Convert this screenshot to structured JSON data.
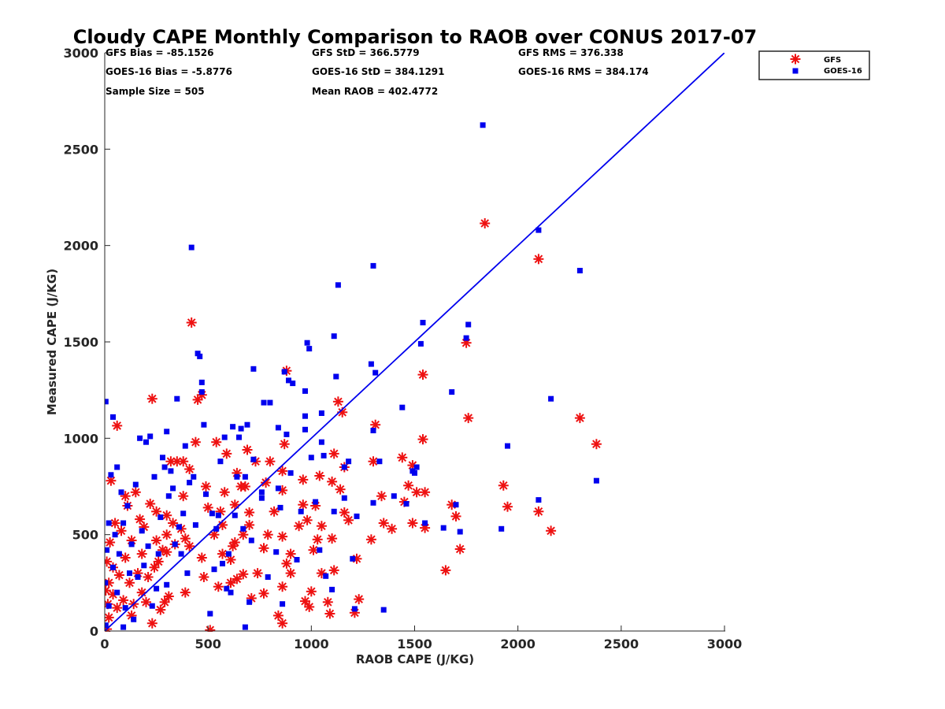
{
  "chart_data": {
    "type": "scatter",
    "title": "Cloudy CAPE Monthly Comparison to RAOB over CONUS 2017-07",
    "xlabel": "RAOB CAPE (J/KG)",
    "ylabel": "Measured CAPE (J/KG)",
    "xlim": [
      0,
      3000
    ],
    "ylim": [
      0,
      3000
    ],
    "xticks": [
      "0",
      "500",
      "1000",
      "1500",
      "2000",
      "2500",
      "3000"
    ],
    "yticks": [
      "0",
      "500",
      "1000",
      "1500",
      "2000",
      "2500",
      "3000"
    ],
    "grid": false,
    "legend_position": "top-right, outside plot",
    "stats": [
      "GFS Bias = -85.1526",
      "GFS StD = 366.5779",
      "GFS RMS = 376.338",
      "GOES-16 Bias = -5.8776",
      "GOES-16 StD = 384.1291",
      "GOES-16 RMS = 384.174",
      "Sample Size = 505",
      "Mean RAOB = 402.4772"
    ],
    "reference_line": {
      "color": "#0000ee",
      "points": [
        [
          0,
          0
        ],
        [
          3000,
          3000
        ]
      ]
    },
    "series": [
      {
        "name": "GFS",
        "marker": "asterisk",
        "color": "#ee1111",
        "points": [
          [
            1840,
            2115
          ],
          [
            2100,
            1930
          ],
          [
            2380,
            970
          ],
          [
            2300,
            1105
          ],
          [
            2160,
            520
          ],
          [
            2100,
            620
          ],
          [
            1950,
            645
          ],
          [
            1930,
            755
          ],
          [
            1760,
            1105
          ],
          [
            1750,
            1495
          ],
          [
            1720,
            425
          ],
          [
            1700,
            595
          ],
          [
            1680,
            655
          ],
          [
            1650,
            315
          ],
          [
            1550,
            535
          ],
          [
            1550,
            720
          ],
          [
            1540,
            995
          ],
          [
            1540,
            1330
          ],
          [
            1510,
            720
          ],
          [
            1490,
            860
          ],
          [
            1490,
            560
          ],
          [
            1470,
            755
          ],
          [
            1450,
            670
          ],
          [
            1440,
            900
          ],
          [
            1390,
            530
          ],
          [
            1350,
            560
          ],
          [
            1340,
            700
          ],
          [
            1310,
            1070
          ],
          [
            1300,
            880
          ],
          [
            1290,
            475
          ],
          [
            1230,
            165
          ],
          [
            1220,
            375
          ],
          [
            1210,
            95
          ],
          [
            1180,
            575
          ],
          [
            1160,
            850
          ],
          [
            1160,
            615
          ],
          [
            1150,
            1135
          ],
          [
            1140,
            735
          ],
          [
            1130,
            1190
          ],
          [
            1100,
            775
          ],
          [
            1100,
            480
          ],
          [
            1110,
            315
          ],
          [
            1110,
            920
          ],
          [
            1090,
            90
          ],
          [
            1080,
            150
          ],
          [
            1050,
            545
          ],
          [
            1050,
            300
          ],
          [
            1040,
            805
          ],
          [
            1030,
            475
          ],
          [
            1020,
            650
          ],
          [
            1010,
            420
          ],
          [
            1000,
            205
          ],
          [
            990,
            125
          ],
          [
            980,
            575
          ],
          [
            970,
            155
          ],
          [
            960,
            655
          ],
          [
            960,
            785
          ],
          [
            940,
            545
          ],
          [
            900,
            300
          ],
          [
            900,
            400
          ],
          [
            880,
            350
          ],
          [
            880,
            1350
          ],
          [
            870,
            970
          ],
          [
            860,
            490
          ],
          [
            860,
            230
          ],
          [
            860,
            730
          ],
          [
            860,
            830
          ],
          [
            860,
            40
          ],
          [
            840,
            80
          ],
          [
            820,
            620
          ],
          [
            800,
            880
          ],
          [
            790,
            500
          ],
          [
            780,
            770
          ],
          [
            770,
            430
          ],
          [
            770,
            195
          ],
          [
            740,
            300
          ],
          [
            730,
            880
          ],
          [
            710,
            170
          ],
          [
            700,
            550
          ],
          [
            700,
            615
          ],
          [
            690,
            940
          ],
          [
            680,
            750
          ],
          [
            670,
            500
          ],
          [
            670,
            295
          ],
          [
            660,
            750
          ],
          [
            640,
            820
          ],
          [
            640,
            270
          ],
          [
            630,
            655
          ],
          [
            630,
            460
          ],
          [
            620,
            440
          ],
          [
            610,
            370
          ],
          [
            610,
            250
          ],
          [
            590,
            920
          ],
          [
            580,
            720
          ],
          [
            570,
            550
          ],
          [
            570,
            400
          ],
          [
            560,
            620
          ],
          [
            550,
            230
          ],
          [
            540,
            980
          ],
          [
            530,
            500
          ],
          [
            510,
            5
          ],
          [
            500,
            640
          ],
          [
            490,
            750
          ],
          [
            480,
            280
          ],
          [
            470,
            380
          ],
          [
            470,
            1225
          ],
          [
            450,
            1200
          ],
          [
            440,
            980
          ],
          [
            420,
            1600
          ],
          [
            410,
            440
          ],
          [
            410,
            840
          ],
          [
            390,
            200
          ],
          [
            390,
            480
          ],
          [
            380,
            700
          ],
          [
            380,
            880
          ],
          [
            370,
            530
          ],
          [
            350,
            880
          ],
          [
            340,
            450
          ],
          [
            330,
            560
          ],
          [
            320,
            880
          ],
          [
            310,
            180
          ],
          [
            300,
            410
          ],
          [
            300,
            600
          ],
          [
            300,
            500
          ],
          [
            290,
            150
          ],
          [
            280,
            420
          ],
          [
            270,
            110
          ],
          [
            260,
            360
          ],
          [
            250,
            620
          ],
          [
            250,
            470
          ],
          [
            240,
            330
          ],
          [
            230,
            40
          ],
          [
            230,
            1205
          ],
          [
            220,
            660
          ],
          [
            210,
            280
          ],
          [
            200,
            150
          ],
          [
            190,
            540
          ],
          [
            180,
            400
          ],
          [
            180,
            200
          ],
          [
            170,
            580
          ],
          [
            160,
            300
          ],
          [
            150,
            720
          ],
          [
            140,
            140
          ],
          [
            130,
            470
          ],
          [
            130,
            80
          ],
          [
            120,
            250
          ],
          [
            110,
            650
          ],
          [
            100,
            700
          ],
          [
            100,
            380
          ],
          [
            90,
            160
          ],
          [
            80,
            520
          ],
          [
            70,
            290
          ],
          [
            60,
            120
          ],
          [
            60,
            1065
          ],
          [
            50,
            560
          ],
          [
            40,
            330
          ],
          [
            40,
            190
          ],
          [
            30,
            780
          ],
          [
            25,
            460
          ],
          [
            20,
            250
          ],
          [
            20,
            70
          ],
          [
            15,
            140
          ],
          [
            10,
            360
          ],
          [
            10,
            10
          ],
          [
            5,
            210
          ]
        ]
      },
      {
        "name": "GOES-16",
        "marker": "square",
        "color": "#0000ee",
        "points": [
          [
            1830,
            2625
          ],
          [
            2100,
            2080
          ],
          [
            2300,
            1870
          ],
          [
            2160,
            1205
          ],
          [
            2380,
            780
          ],
          [
            2100,
            680
          ],
          [
            1950,
            960
          ],
          [
            1920,
            530
          ],
          [
            1760,
            1590
          ],
          [
            1750,
            1520
          ],
          [
            1720,
            515
          ],
          [
            1700,
            655
          ],
          [
            1680,
            1240
          ],
          [
            1640,
            535
          ],
          [
            1550,
            560
          ],
          [
            1540,
            1600
          ],
          [
            1530,
            1490
          ],
          [
            1510,
            850
          ],
          [
            1500,
            820
          ],
          [
            1490,
            830
          ],
          [
            1460,
            660
          ],
          [
            1440,
            1160
          ],
          [
            1400,
            700
          ],
          [
            1350,
            110
          ],
          [
            1330,
            880
          ],
          [
            1310,
            1340
          ],
          [
            1300,
            1895
          ],
          [
            1300,
            1040
          ],
          [
            1300,
            665
          ],
          [
            1290,
            1385
          ],
          [
            1220,
            595
          ],
          [
            1210,
            115
          ],
          [
            1200,
            375
          ],
          [
            1180,
            880
          ],
          [
            1160,
            850
          ],
          [
            1160,
            690
          ],
          [
            1130,
            1795
          ],
          [
            1120,
            1320
          ],
          [
            1110,
            1530
          ],
          [
            1110,
            620
          ],
          [
            1100,
            215
          ],
          [
            1070,
            285
          ],
          [
            1060,
            910
          ],
          [
            1050,
            980
          ],
          [
            1050,
            1130
          ],
          [
            1040,
            420
          ],
          [
            1020,
            670
          ],
          [
            1000,
            900
          ],
          [
            990,
            1465
          ],
          [
            980,
            1495
          ],
          [
            970,
            1245
          ],
          [
            970,
            1115
          ],
          [
            970,
            1045
          ],
          [
            950,
            620
          ],
          [
            930,
            370
          ],
          [
            910,
            1285
          ],
          [
            900,
            820
          ],
          [
            890,
            1300
          ],
          [
            880,
            1020
          ],
          [
            870,
            1345
          ],
          [
            860,
            140
          ],
          [
            850,
            640
          ],
          [
            840,
            1055
          ],
          [
            840,
            740
          ],
          [
            830,
            410
          ],
          [
            800,
            1185
          ],
          [
            790,
            280
          ],
          [
            770,
            1185
          ],
          [
            760,
            690
          ],
          [
            760,
            720
          ],
          [
            720,
            1360
          ],
          [
            720,
            890
          ],
          [
            710,
            470
          ],
          [
            700,
            150
          ],
          [
            690,
            1070
          ],
          [
            680,
            800
          ],
          [
            680,
            20
          ],
          [
            670,
            530
          ],
          [
            660,
            1050
          ],
          [
            650,
            1005
          ],
          [
            640,
            800
          ],
          [
            630,
            600
          ],
          [
            620,
            1060
          ],
          [
            610,
            200
          ],
          [
            600,
            400
          ],
          [
            590,
            220
          ],
          [
            580,
            1005
          ],
          [
            570,
            350
          ],
          [
            560,
            880
          ],
          [
            550,
            600
          ],
          [
            540,
            530
          ],
          [
            530,
            320
          ],
          [
            520,
            610
          ],
          [
            510,
            90
          ],
          [
            490,
            710
          ],
          [
            480,
            1070
          ],
          [
            470,
            1240
          ],
          [
            470,
            1290
          ],
          [
            460,
            1425
          ],
          [
            450,
            1440
          ],
          [
            440,
            550
          ],
          [
            430,
            800
          ],
          [
            420,
            1990
          ],
          [
            410,
            770
          ],
          [
            400,
            300
          ],
          [
            390,
            960
          ],
          [
            380,
            610
          ],
          [
            370,
            400
          ],
          [
            360,
            540
          ],
          [
            350,
            1205
          ],
          [
            340,
            450
          ],
          [
            330,
            740
          ],
          [
            320,
            830
          ],
          [
            310,
            700
          ],
          [
            300,
            1035
          ],
          [
            300,
            240
          ],
          [
            290,
            850
          ],
          [
            280,
            900
          ],
          [
            270,
            590
          ],
          [
            260,
            400
          ],
          [
            250,
            220
          ],
          [
            240,
            800
          ],
          [
            230,
            130
          ],
          [
            220,
            1010
          ],
          [
            210,
            440
          ],
          [
            200,
            980
          ],
          [
            190,
            340
          ],
          [
            180,
            520
          ],
          [
            170,
            1000
          ],
          [
            160,
            280
          ],
          [
            150,
            760
          ],
          [
            140,
            60
          ],
          [
            130,
            450
          ],
          [
            120,
            300
          ],
          [
            110,
            650
          ],
          [
            100,
            120
          ],
          [
            90,
            560
          ],
          [
            80,
            720
          ],
          [
            70,
            400
          ],
          [
            60,
            200
          ],
          [
            50,
            500
          ],
          [
            40,
            1110
          ],
          [
            40,
            330
          ],
          [
            30,
            810
          ],
          [
            20,
            560
          ],
          [
            20,
            130
          ],
          [
            10,
            420
          ],
          [
            5,
            1190
          ],
          [
            5,
            30
          ],
          [
            3,
            250
          ],
          [
            60,
            850
          ],
          [
            90,
            20
          ]
        ]
      }
    ]
  }
}
